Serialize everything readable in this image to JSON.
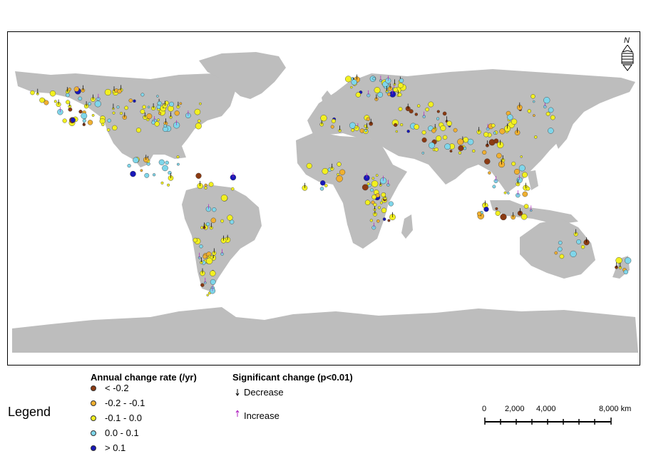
{
  "legend_heading": "Legend",
  "rate_legend": {
    "title": "Annual change rate (/yr)",
    "items": [
      {
        "label": "< -0.2",
        "color": "#8b3a12"
      },
      {
        "label": "-0.2 - -0.1",
        "color": "#f0b030"
      },
      {
        "label": "-0.1 - 0.0",
        "color": "#f2f020"
      },
      {
        "label": "0.0 - 0.1",
        "color": "#7fd6ea"
      },
      {
        "label": "> 0.1",
        "color": "#1818b8"
      }
    ]
  },
  "significance_legend": {
    "title": "Significant change (p<0.01)",
    "items": [
      {
        "label": "Decrease",
        "color": "#000000"
      },
      {
        "label": "Increase",
        "color": "#b020c0"
      }
    ]
  },
  "north_arrow": {
    "label": "N",
    "icon": "north-arrow-icon"
  },
  "scale_bar": {
    "labels": [
      "0",
      "2,000",
      "4,000",
      "8,000 km"
    ]
  },
  "colors": {
    "land": "#bdbdbd",
    "ocean": "#ffffff"
  }
}
